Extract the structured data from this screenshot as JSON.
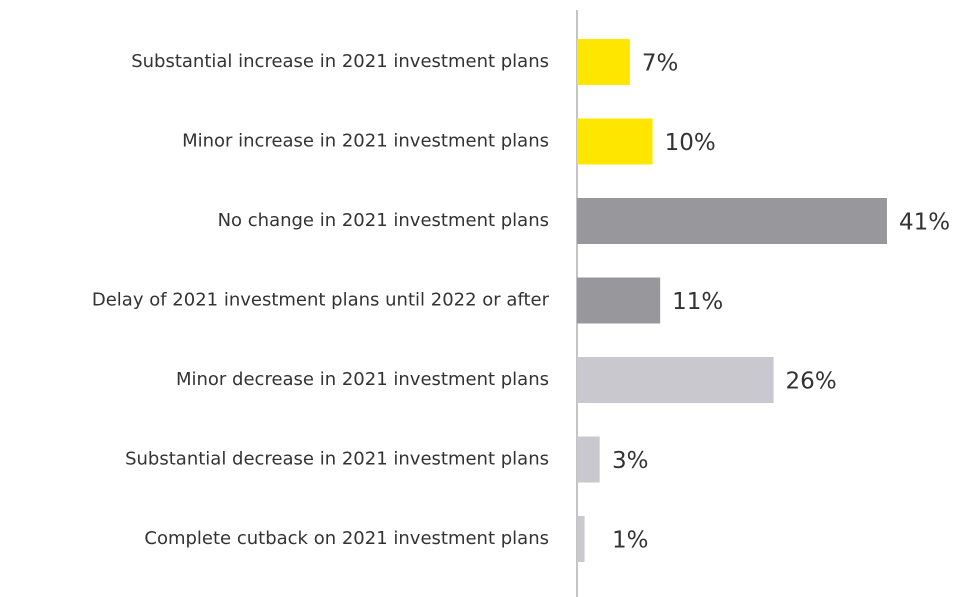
{
  "chart_data": {
    "type": "hbar",
    "categories": [
      "Substantial increase in 2021 investment plans",
      "Minor increase in 2021 investment plans",
      "No change in 2021 investment plans",
      "Delay of 2021 investment plans until 2022 or after",
      "Minor decrease in 2021 investment plans",
      "Substantial decrease in 2021 investment plans",
      "Complete cutback on 2021 investment plans"
    ],
    "values": [
      7,
      10,
      41,
      11,
      26,
      3,
      1
    ],
    "value_labels": [
      "7%",
      "10%",
      "41%",
      "11%",
      "26%",
      "3%",
      "1%"
    ],
    "colors": [
      "#ffe600",
      "#ffe600",
      "#98989c",
      "#98989c",
      "#c8c8ce",
      "#c8c8ce",
      "#c8c8ce"
    ]
  }
}
